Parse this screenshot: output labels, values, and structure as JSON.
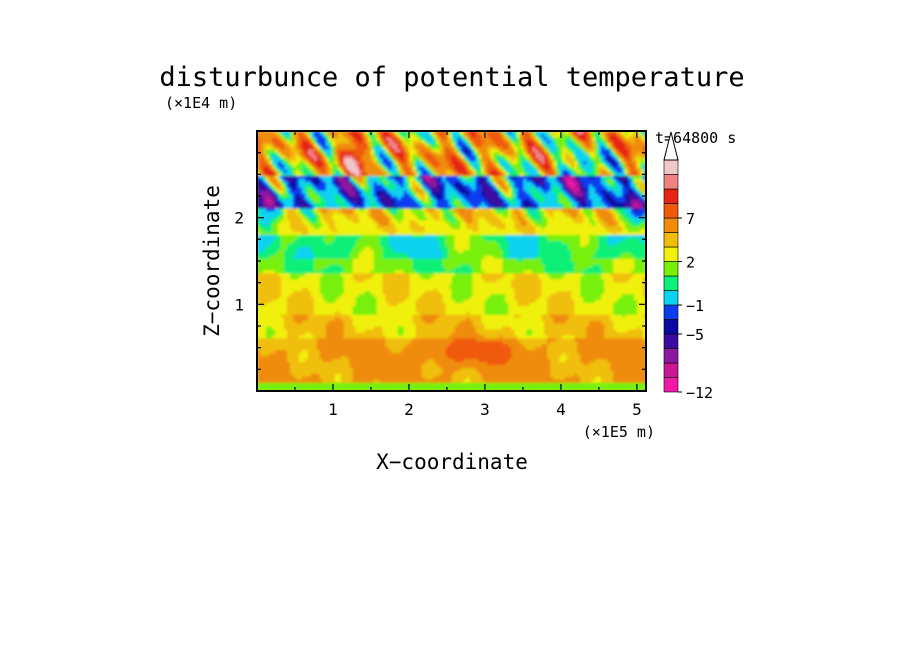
{
  "chart_data": {
    "type": "heatmap",
    "title": "disturbunce of potential temperature",
    "time_label": "t=64800 s",
    "xlabel": "X−coordinate",
    "ylabel": "Z−coordinate",
    "x_unit": "(×1E5 m)",
    "y_unit": "(×1E4 m)",
    "xlim": [
      0,
      5.12
    ],
    "ylim": [
      0,
      3.0
    ],
    "x_ticks": [
      1,
      2,
      3,
      4,
      5
    ],
    "x_tick_labels": [
      "1",
      "2",
      "3",
      "4",
      "5"
    ],
    "y_ticks": [
      1,
      2
    ],
    "y_tick_labels": [
      "1",
      "2"
    ],
    "colorbar": {
      "levels": [
        -12,
        -10,
        -8,
        -6,
        -5,
        -3,
        -1,
        0,
        1,
        2,
        3,
        5,
        7,
        9,
        11
      ],
      "colors": [
        "#f018a8",
        "#c81896",
        "#8c18a0",
        "#3c0aa0",
        "#0a0aa0",
        "#0a3cf0",
        "#0ad2f0",
        "#0af078",
        "#78f00a",
        "#f0f00a",
        "#f0be0a",
        "#f08c0a",
        "#f05a0a",
        "#e62314",
        "#f08282",
        "#f0c8c8"
      ],
      "tick_values": [
        -12,
        -5,
        -1,
        2,
        7
      ],
      "tick_labels": [
        "−12",
        "−5",
        "−1",
        "2",
        "7"
      ]
    },
    "bands": [
      {
        "z_range": [
          0.0,
          0.1
        ],
        "approx_value": 0.5
      },
      {
        "z_range": [
          0.1,
          0.6
        ],
        "approx_value": 3.5
      },
      {
        "z_range": [
          0.6,
          0.9
        ],
        "approx_value": 2.0
      },
      {
        "z_range": [
          0.9,
          1.35
        ],
        "approx_value": 1.5
      },
      {
        "z_range": [
          1.35,
          1.8
        ],
        "approx_value": 0.0
      },
      {
        "z_range": [
          1.8,
          2.1
        ],
        "approx_value": 2.0
      },
      {
        "z_range": [
          2.1,
          2.5
        ],
        "approx_value": -4.0
      },
      {
        "z_range": [
          2.5,
          3.0
        ],
        "approx_value": 4.0
      }
    ]
  }
}
